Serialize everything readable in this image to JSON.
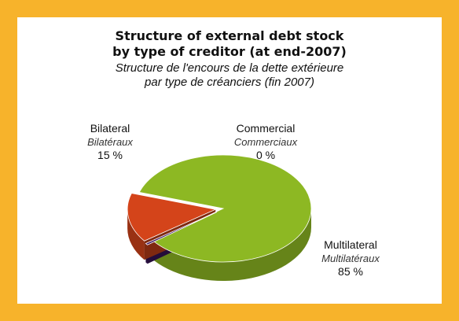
{
  "chart_data": {
    "type": "pie",
    "title": "Structure of external debt stock\nby type of creditor (at end-2007)",
    "title_lines": [
      "Structure of external debt stock",
      "by type of creditor (at end-2007)"
    ],
    "subtitle_lines": [
      "Structure de l'encours de la dette extérieure",
      "par type de créanciers (fin 2007)"
    ],
    "categories": [
      "Multilateral",
      "Bilateral",
      "Commercial"
    ],
    "categories_fr": [
      "Multilatéraux",
      "Bilatéraux",
      "Commerciaux"
    ],
    "values": [
      85,
      15,
      0.5
    ],
    "value_labels": [
      "85 %",
      "15 %",
      "0 %"
    ],
    "colors": {
      "Multilateral": "#8db823",
      "Bilateral": "#d4441a",
      "Commercial": "#3c1461",
      "frame": "#f7b32b"
    },
    "style": "3d exploded pie",
    "legend": "none"
  }
}
